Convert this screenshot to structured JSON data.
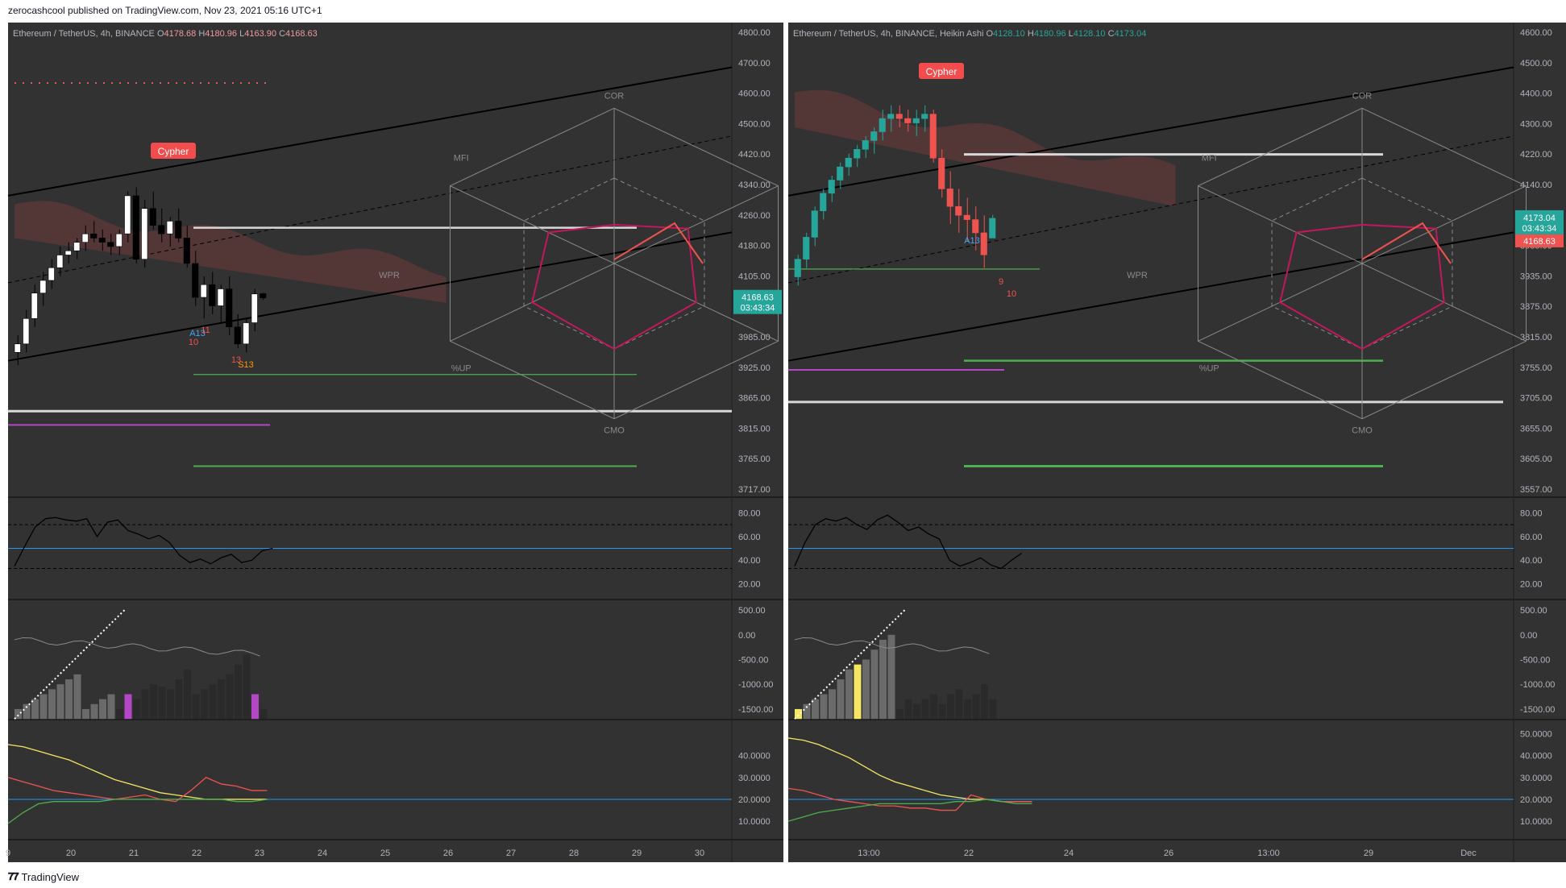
{
  "page": {
    "publisher": "zerocashcool published on TradingView.com, Nov 23, 2021 05:16 UTC+1",
    "footer": "TradingView",
    "footer_logo": "tv-logo-icon"
  },
  "colors": {
    "bg": "#323232",
    "grid": "#3c3c3c",
    "text": "#b2b5be",
    "up": "#26a69a",
    "down": "#ef5350",
    "cloud": "#7d3c3c",
    "purple": "#b447c6",
    "yellow": "#f5e663",
    "blue": "#2962ff"
  },
  "left": {
    "legend": {
      "symbol": "Ethereum / TetherUS, 4h, BINANCE",
      "o_label": "O",
      "o": "4178.68",
      "h_label": "H",
      "h": "4180.96",
      "l_label": "L",
      "l": "4163.90",
      "c_label": "C",
      "c": "4168.63"
    },
    "price_ticks": [
      "4800.00",
      "4700.00",
      "4600.00",
      "4500.00",
      "4420.00",
      "4340.00",
      "4260.00",
      "4180.00",
      "4105.00",
      "4045.00",
      "3985.00",
      "3925.00",
      "3865.00",
      "3815.00",
      "3765.00",
      "3717.00"
    ],
    "last_price": "4168.63",
    "countdown": "03:43:34",
    "cypher_label": "Cypher",
    "radar_labels": [
      "COR",
      "MFI",
      "WPR",
      "%UP",
      "CMO"
    ],
    "osc1_ticks": [
      "80.00",
      "60.00",
      "40.00",
      "20.00"
    ],
    "osc2_ticks": [
      "500.00",
      "0.00",
      "-500.00",
      "-1000.00",
      "-1500.00"
    ],
    "osc3_ticks": [
      "40.0000",
      "30.0000",
      "20.0000",
      "10.0000"
    ],
    "time_ticks": [
      "9",
      "20",
      "21",
      "22",
      "23",
      "24",
      "25",
      "26",
      "27",
      "28",
      "29",
      "30"
    ],
    "td_labels": [
      "A13",
      "S13",
      "11",
      "10",
      "13"
    ]
  },
  "right": {
    "legend": {
      "symbol": "Ethereum / TetherUS, 4h, BINANCE, Heikin Ashi",
      "o_label": "O",
      "o": "4128.10",
      "h_label": "H",
      "h": "4180.96",
      "l_label": "L",
      "l": "4128.10",
      "c_label": "C",
      "c": "4173.04"
    },
    "price_ticks": [
      "4600.00",
      "4500.00",
      "4400.00",
      "4300.00",
      "4220.00",
      "4140.00",
      "4060.00",
      "3985.00",
      "3935.00",
      "3875.00",
      "3815.00",
      "3755.00",
      "3705.00",
      "3655.00",
      "3605.00",
      "3557.00"
    ],
    "last_price": "4173.04",
    "countdown": "03:43:34",
    "prev_price": "4168.63",
    "cypher_label": "Cypher",
    "radar_labels": [
      "COR",
      "MFI",
      "WPR",
      "%UP",
      "CMO"
    ],
    "osc1_ticks": [
      "80.00",
      "60.00",
      "40.00",
      "20.00"
    ],
    "osc2_ticks": [
      "500.00",
      "0.00",
      "-500.00",
      "-1000.00",
      "-1500.00"
    ],
    "osc3_ticks": [
      "50.0000",
      "40.0000",
      "30.0000",
      "20.0000",
      "10.0000"
    ],
    "time_ticks": [
      "13:00",
      "22",
      "24",
      "26",
      "13:00",
      "29",
      "Dec"
    ],
    "td_labels": [
      "A13",
      "9",
      "10"
    ]
  },
  "chart_data": [
    {
      "type": "candlestick",
      "title": "Ethereum / TetherUS, 4h, BINANCE",
      "ylim": [
        3717,
        4800
      ],
      "ohlc_last": {
        "open": 4178.68,
        "high": 4180.96,
        "low": 4163.9,
        "close": 4168.63
      },
      "candles": [
        [
          4040,
          4080,
          4010,
          4060
        ],
        [
          4060,
          4140,
          4040,
          4120
        ],
        [
          4120,
          4200,
          4100,
          4180
        ],
        [
          4180,
          4230,
          4150,
          4210
        ],
        [
          4210,
          4260,
          4190,
          4240
        ],
        [
          4240,
          4290,
          4220,
          4270
        ],
        [
          4270,
          4300,
          4250,
          4280
        ],
        [
          4280,
          4310,
          4260,
          4300
        ],
        [
          4300,
          4340,
          4280,
          4320
        ],
        [
          4320,
          4350,
          4300,
          4310
        ],
        [
          4310,
          4330,
          4280,
          4300
        ],
        [
          4300,
          4320,
          4270,
          4290
        ],
        [
          4290,
          4330,
          4270,
          4320
        ],
        [
          4320,
          4420,
          4300,
          4410
        ],
        [
          4410,
          4430,
          4250,
          4260
        ],
        [
          4260,
          4400,
          4240,
          4380
        ],
        [
          4380,
          4420,
          4330,
          4340
        ],
        [
          4340,
          4380,
          4300,
          4320
        ],
        [
          4320,
          4360,
          4290,
          4350
        ],
        [
          4350,
          4380,
          4300,
          4310
        ],
        [
          4310,
          4340,
          4240,
          4250
        ],
        [
          4250,
          4280,
          4150,
          4170
        ],
        [
          4170,
          4220,
          4120,
          4200
        ],
        [
          4200,
          4230,
          4130,
          4150
        ],
        [
          4150,
          4200,
          4110,
          4190
        ],
        [
          4190,
          4220,
          4080,
          4100
        ],
        [
          4100,
          4130,
          4050,
          4060
        ],
        [
          4060,
          4120,
          4040,
          4110
        ],
        [
          4110,
          4190,
          4090,
          4178
        ],
        [
          4178.68,
          4180.96,
          4163.9,
          4168.63
        ]
      ],
      "osc1": [
        35,
        52,
        68,
        75,
        76,
        74,
        73,
        75,
        60,
        72,
        74,
        65,
        62,
        58,
        61,
        55,
        44,
        38,
        41,
        37,
        42,
        45,
        38,
        40,
        48,
        50
      ],
      "osc2": [
        -1500,
        -1400,
        -1300,
        -1200,
        -1100,
        -1000,
        -900,
        -800,
        -1500,
        -1400,
        -1300,
        -1200,
        -1500,
        -1200,
        -1300,
        -1100,
        -1000,
        -1050,
        -1100,
        -900,
        -700,
        -1200,
        -1100,
        -1000,
        -900,
        -800,
        -600,
        -400,
        -1200,
        -1500
      ],
      "osc2_purple_idx": [
        13,
        28
      ],
      "osc3": {
        "yellow": [
          45,
          44,
          42,
          40,
          38,
          35,
          32,
          29,
          27,
          25,
          23,
          22,
          21,
          20,
          20,
          20,
          20,
          20
        ],
        "red": [
          30,
          28,
          26,
          24,
          23,
          22,
          21,
          20,
          21,
          22,
          20,
          19,
          24,
          30,
          27,
          26,
          24,
          24
        ],
        "green": [
          9,
          14,
          18,
          19,
          19,
          19,
          19,
          20,
          20,
          20,
          20,
          20,
          20,
          20,
          20,
          19,
          19,
          20
        ]
      }
    },
    {
      "type": "candlestick",
      "title": "Ethereum / TetherUS, 4h, BINANCE, Heikin Ashi",
      "ylim": [
        3557,
        4600
      ],
      "ohlc_last": {
        "open": 4128.1,
        "high": 4180.96,
        "low": 4128.1,
        "close": 4173.04
      },
      "candles": [
        [
          4040,
          4090,
          4020,
          4080
        ],
        [
          4080,
          4140,
          4060,
          4130
        ],
        [
          4130,
          4200,
          4110,
          4190
        ],
        [
          4190,
          4240,
          4170,
          4230
        ],
        [
          4230,
          4270,
          4210,
          4260
        ],
        [
          4260,
          4300,
          4240,
          4290
        ],
        [
          4290,
          4320,
          4270,
          4310
        ],
        [
          4310,
          4340,
          4290,
          4330
        ],
        [
          4330,
          4360,
          4310,
          4350
        ],
        [
          4350,
          4380,
          4320,
          4370
        ],
        [
          4370,
          4420,
          4350,
          4400
        ],
        [
          4400,
          4430,
          4370,
          4410
        ],
        [
          4410,
          4430,
          4380,
          4400
        ],
        [
          4400,
          4420,
          4370,
          4390
        ],
        [
          4390,
          4420,
          4360,
          4400
        ],
        [
          4400,
          4430,
          4370,
          4410
        ],
        [
          4410,
          4420,
          4300,
          4310
        ],
        [
          4310,
          4330,
          4220,
          4240
        ],
        [
          4240,
          4280,
          4160,
          4200
        ],
        [
          4200,
          4240,
          4140,
          4180
        ],
        [
          4180,
          4220,
          4120,
          4170
        ],
        [
          4170,
          4200,
          4100,
          4140
        ],
        [
          4140,
          4180,
          4060,
          4090
        ],
        [
          4128.1,
          4180.96,
          4128.1,
          4173.04
        ]
      ],
      "osc1": [
        35,
        55,
        70,
        75,
        73,
        76,
        70,
        66,
        74,
        78,
        72,
        65,
        68,
        62,
        58,
        40,
        35,
        38,
        42,
        36,
        33,
        40,
        46
      ],
      "osc2": [
        -1500,
        -1400,
        -1300,
        -1200,
        -1100,
        -900,
        -700,
        -600,
        -500,
        -300,
        -100,
        0,
        -1500,
        -1300,
        -1400,
        -1300,
        -1200,
        -1400,
        -1200,
        -1100,
        -1300,
        -1200,
        -1000,
        -1300
      ],
      "osc2_yellow_idx": [
        0,
        7
      ],
      "osc3": {
        "yellow": [
          48,
          47,
          45,
          42,
          39,
          35,
          31,
          28,
          26,
          24,
          22,
          21,
          20,
          20,
          19,
          19,
          19
        ],
        "red": [
          25,
          24,
          22,
          20,
          19,
          18,
          17,
          17,
          16,
          16,
          15,
          15,
          22,
          20,
          19,
          19,
          19
        ],
        "green": [
          10,
          12,
          14,
          15,
          16,
          17,
          18,
          18,
          18,
          18,
          18,
          19,
          19,
          20,
          19,
          18,
          18
        ]
      }
    }
  ]
}
